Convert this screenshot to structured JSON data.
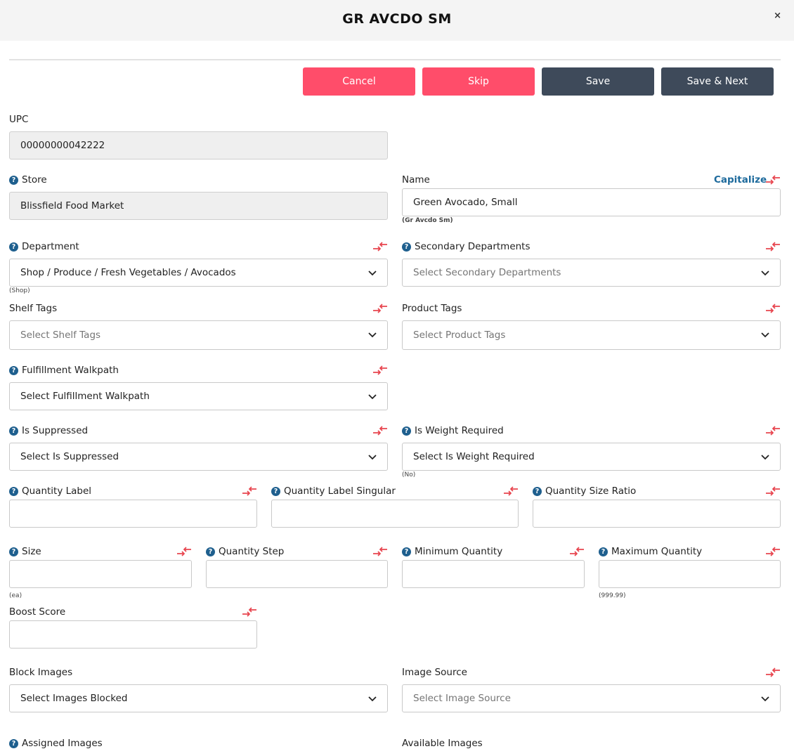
{
  "header": {
    "title": "GR AVCDO SM",
    "close": "×"
  },
  "actions": {
    "cancel": "Cancel",
    "skip": "Skip",
    "save": "Save",
    "save_next": "Save & Next"
  },
  "upc": {
    "label": "UPC",
    "value": "00000000042222"
  },
  "store": {
    "label": "Store",
    "value": "Blissfield Food Market"
  },
  "name": {
    "label": "Name",
    "value": "Green Avocado, Small",
    "hint": "(Gr Avcdo Sm)",
    "capitalize": "Capitalize"
  },
  "department": {
    "label": "Department",
    "value": "Shop / Produce / Fresh Vegetables / Avocados",
    "hint": "(Shop)"
  },
  "secondary_departments": {
    "label": "Secondary Departments",
    "placeholder": "Select Secondary Departments"
  },
  "shelf_tags": {
    "label": "Shelf Tags",
    "placeholder": "Select Shelf Tags"
  },
  "product_tags": {
    "label": "Product Tags",
    "placeholder": "Select Product Tags"
  },
  "fulfillment_walkpath": {
    "label": "Fulfillment Walkpath",
    "value": "Select Fulfillment Walkpath"
  },
  "is_suppressed": {
    "label": "Is Suppressed",
    "value": "Select Is Suppressed"
  },
  "is_weight_required": {
    "label": "Is Weight Required",
    "value": "Select Is Weight Required",
    "hint": "(No)"
  },
  "quantity_label": {
    "label": "Quantity Label",
    "value": ""
  },
  "quantity_label_singular": {
    "label": "Quantity Label Singular",
    "value": ""
  },
  "quantity_size_ratio": {
    "label": "Quantity Size Ratio",
    "value": ""
  },
  "size": {
    "label": "Size",
    "value": "",
    "hint": "(ea)"
  },
  "quantity_step": {
    "label": "Quantity Step",
    "value": ""
  },
  "minimum_quantity": {
    "label": "Minimum Quantity",
    "value": ""
  },
  "maximum_quantity": {
    "label": "Maximum Quantity",
    "value": "",
    "hint": "(999.99)"
  },
  "boost_score": {
    "label": "Boost Score",
    "value": ""
  },
  "block_images": {
    "label": "Block Images",
    "value": "Select Images Blocked"
  },
  "image_source": {
    "label": "Image Source",
    "placeholder": "Select Image Source"
  },
  "assigned_images": {
    "label": "Assigned Images"
  },
  "available_images": {
    "label": "Available Images"
  },
  "colors": {
    "danger": "#ff4d6a",
    "dark": "#3e4a5a",
    "link": "#1d6a9c",
    "help": "#1e5f8e",
    "sync_arrow": "#e8454f"
  }
}
